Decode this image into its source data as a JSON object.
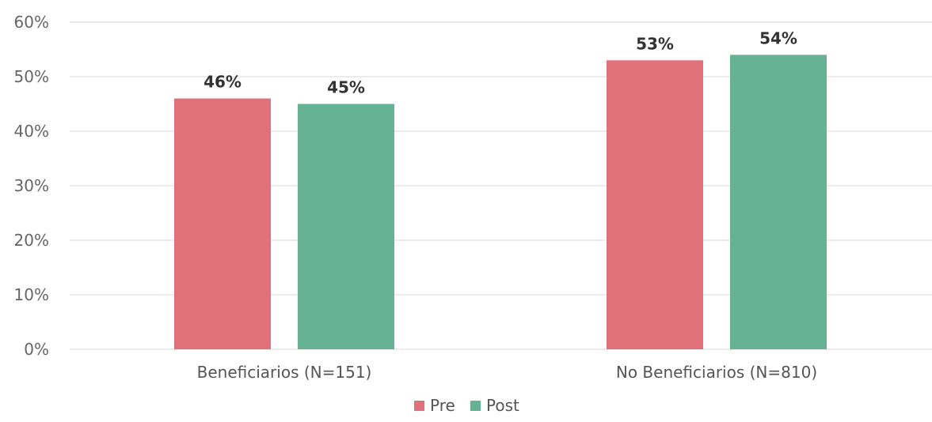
{
  "chart_data": {
    "type": "bar",
    "categories": [
      "Beneficiarios (N=151)",
      "No Beneficiarios (N=810)"
    ],
    "series": [
      {
        "name": "Pre",
        "values": [
          46,
          53
        ],
        "labels": [
          "46%",
          "53%"
        ],
        "color": "#e0707a"
      },
      {
        "name": "Post",
        "values": [
          45,
          54
        ],
        "labels": [
          "45%",
          "54%"
        ],
        "color": "#66b294"
      }
    ],
    "ylim": [
      0,
      60
    ],
    "yticks": [
      0,
      10,
      20,
      30,
      40,
      50,
      60
    ],
    "ytick_labels": [
      "0%",
      "10%",
      "20%",
      "30%",
      "40%",
      "50%",
      "60%"
    ],
    "grid": true,
    "legend_position": "bottom-center",
    "title": "",
    "xlabel": "",
    "ylabel": ""
  }
}
